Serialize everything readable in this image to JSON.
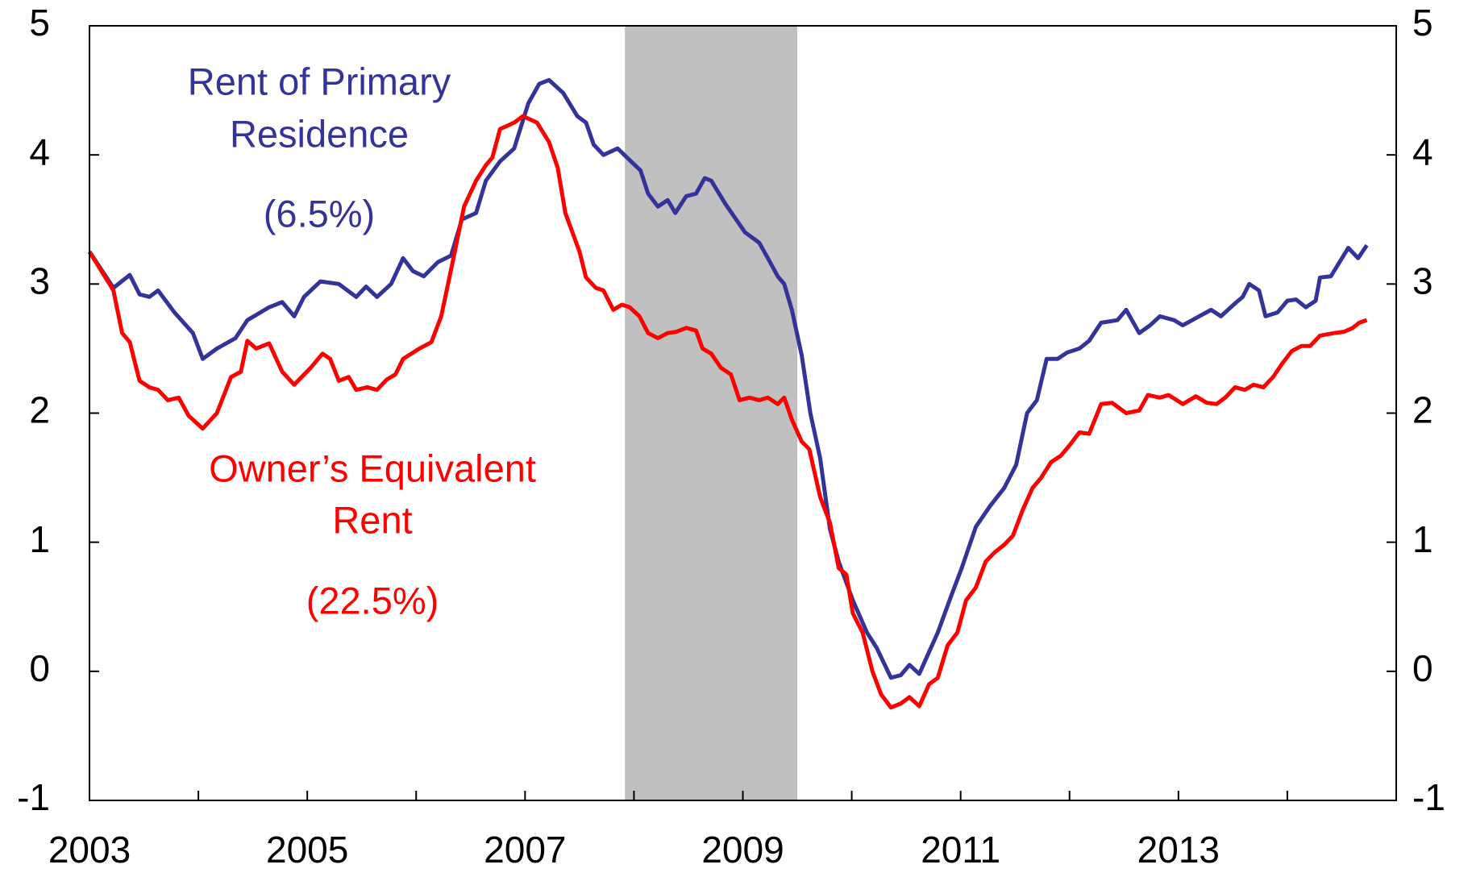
{
  "chart_data": {
    "type": "line",
    "xlim": [
      2003,
      2015
    ],
    "xticks": [
      2003,
      2005,
      2007,
      2009,
      2011,
      2013
    ],
    "xminorticks": [
      2004,
      2006,
      2008,
      2010,
      2012,
      2014
    ],
    "ylim": [
      -1,
      5
    ],
    "yticks": [
      -1,
      0,
      1,
      2,
      3,
      4,
      5
    ],
    "y2lim": [
      -1,
      5
    ],
    "y2ticks": [
      -1,
      0,
      1,
      2,
      3,
      4,
      5
    ],
    "shaded_regions": [
      {
        "x": [
          2007.917,
          2009.5
        ],
        "color": "#c0c0c0"
      }
    ],
    "annotations": [
      {
        "text": "Rent of Primary",
        "color": "#333399"
      },
      {
        "text": "Residence",
        "color": "#333399"
      },
      {
        "text": "(6.5%)",
        "color": "#333399"
      },
      {
        "text": "Owner’s Equivalent",
        "color": "#ff0000"
      },
      {
        "text": "Rent",
        "color": "#ff0000"
      },
      {
        "text": "(22.5%)",
        "color": "#ff0000"
      }
    ],
    "series": [
      {
        "name": "Rent of Primary Residence",
        "color": "#333399",
        "x": [
          2003.0,
          2003.22,
          2003.37,
          2003.46,
          2003.55,
          2003.63,
          2003.78,
          2003.95,
          2004.04,
          2004.17,
          2004.34,
          2004.45,
          2004.65,
          2004.77,
          2004.88,
          2004.97,
          2005.12,
          2005.29,
          2005.45,
          2005.54,
          2005.64,
          2005.77,
          2005.88,
          2005.97,
          2006.07,
          2006.2,
          2006.32,
          2006.42,
          2006.55,
          2006.64,
          2006.77,
          2006.9,
          2007.03,
          2007.13,
          2007.22,
          2007.35,
          2007.48,
          2007.56,
          2007.63,
          2007.72,
          2007.85,
          2007.96,
          2008.06,
          2008.13,
          2008.22,
          2008.31,
          2008.38,
          2008.48,
          2008.57,
          2008.65,
          2008.71,
          2008.84,
          2009.02,
          2009.15,
          2009.23,
          2009.32,
          2009.38,
          2009.45,
          2009.54,
          2009.62,
          2009.71,
          2009.8,
          2009.88,
          2010.01,
          2010.14,
          2010.23,
          2010.36,
          2010.45,
          2010.53,
          2010.62,
          2010.71,
          2010.79,
          2010.92,
          2011.01,
          2011.14,
          2011.27,
          2011.4,
          2011.51,
          2011.61,
          2011.7,
          2011.79,
          2011.89,
          2011.98,
          2012.09,
          2012.18,
          2012.29,
          2012.44,
          2012.52,
          2012.64,
          2012.74,
          2012.83,
          2012.96,
          2013.04,
          2013.17,
          2013.3,
          2013.39,
          2013.52,
          2013.59,
          2013.65,
          2013.74,
          2013.8,
          2013.91,
          2014.0,
          2014.08,
          2014.17,
          2014.26,
          2014.3,
          2014.4,
          2014.56,
          2014.65,
          2014.73
        ],
        "values": [
          3.25,
          2.97,
          3.07,
          2.92,
          2.9,
          2.95,
          2.78,
          2.62,
          2.42,
          2.5,
          2.58,
          2.72,
          2.82,
          2.86,
          2.75,
          2.9,
          3.02,
          3.0,
          2.9,
          2.98,
          2.9,
          3.0,
          3.2,
          3.1,
          3.06,
          3.17,
          3.22,
          3.5,
          3.55,
          3.8,
          3.95,
          4.05,
          4.4,
          4.55,
          4.58,
          4.48,
          4.3,
          4.25,
          4.08,
          4.0,
          4.05,
          3.96,
          3.88,
          3.7,
          3.6,
          3.65,
          3.55,
          3.68,
          3.7,
          3.82,
          3.8,
          3.62,
          3.4,
          3.32,
          3.2,
          3.06,
          3.0,
          2.8,
          2.45,
          2.0,
          1.65,
          1.1,
          0.85,
          0.55,
          0.3,
          0.18,
          -0.05,
          -0.03,
          0.05,
          -0.02,
          0.15,
          0.3,
          0.6,
          0.8,
          1.12,
          1.28,
          1.42,
          1.6,
          2.0,
          2.1,
          2.42,
          2.42,
          2.47,
          2.5,
          2.56,
          2.7,
          2.72,
          2.8,
          2.62,
          2.68,
          2.75,
          2.72,
          2.68,
          2.74,
          2.8,
          2.75,
          2.85,
          2.9,
          3.0,
          2.95,
          2.75,
          2.78,
          2.87,
          2.88,
          2.82,
          2.87,
          3.05,
          3.06,
          3.28,
          3.2,
          3.3
        ]
      },
      {
        "name": "Owner’s Equivalent Rent",
        "color": "#ff0000",
        "x": [
          2003.0,
          2003.22,
          2003.3,
          2003.37,
          2003.46,
          2003.55,
          2003.63,
          2003.72,
          2003.82,
          2003.91,
          2004.04,
          2004.17,
          2004.3,
          2004.39,
          2004.45,
          2004.53,
          2004.65,
          2004.77,
          2004.88,
          2005.03,
          2005.14,
          2005.21,
          2005.29,
          2005.38,
          2005.45,
          2005.55,
          2005.64,
          2005.73,
          2005.81,
          2005.88,
          2006.03,
          2006.14,
          2006.23,
          2006.33,
          2006.44,
          2006.55,
          2006.64,
          2006.7,
          2006.77,
          2006.9,
          2006.98,
          2007.11,
          2007.22,
          2007.3,
          2007.37,
          2007.5,
          2007.56,
          2007.65,
          2007.72,
          2007.81,
          2007.89,
          2007.96,
          2008.05,
          2008.13,
          2008.22,
          2008.31,
          2008.39,
          2008.48,
          2008.57,
          2008.63,
          2008.71,
          2008.8,
          2008.89,
          2008.97,
          2009.06,
          2009.15,
          2009.23,
          2009.32,
          2009.38,
          2009.45,
          2009.54,
          2009.61,
          2009.71,
          2009.8,
          2009.88,
          2009.95,
          2010.01,
          2010.1,
          2010.19,
          2010.27,
          2010.36,
          2010.45,
          2010.53,
          2010.62,
          2010.71,
          2010.79,
          2010.88,
          2010.97,
          2011.05,
          2011.14,
          2011.23,
          2011.31,
          2011.4,
          2011.48,
          2011.57,
          2011.66,
          2011.74,
          2011.83,
          2011.92,
          2012.0,
          2012.09,
          2012.18,
          2012.29,
          2012.39,
          2012.52,
          2012.64,
          2012.72,
          2012.83,
          2012.91,
          2013.04,
          2013.16,
          2013.26,
          2013.35,
          2013.43,
          2013.52,
          2013.61,
          2013.69,
          2013.78,
          2013.87,
          2013.95,
          2014.04,
          2014.13,
          2014.21,
          2014.3,
          2014.43,
          2014.52,
          2014.6,
          2014.66,
          2014.73
        ],
        "values": [
          3.25,
          2.95,
          2.62,
          2.55,
          2.25,
          2.2,
          2.18,
          2.1,
          2.12,
          1.98,
          1.88,
          2.0,
          2.28,
          2.32,
          2.56,
          2.5,
          2.54,
          2.32,
          2.22,
          2.35,
          2.46,
          2.42,
          2.25,
          2.28,
          2.18,
          2.2,
          2.18,
          2.26,
          2.3,
          2.42,
          2.5,
          2.55,
          2.75,
          3.15,
          3.6,
          3.8,
          3.92,
          3.98,
          4.2,
          4.25,
          4.3,
          4.25,
          4.1,
          3.9,
          3.55,
          3.25,
          3.05,
          2.97,
          2.95,
          2.8,
          2.84,
          2.82,
          2.75,
          2.62,
          2.58,
          2.62,
          2.63,
          2.66,
          2.64,
          2.5,
          2.46,
          2.35,
          2.3,
          2.1,
          2.12,
          2.1,
          2.12,
          2.07,
          2.12,
          1.95,
          1.78,
          1.72,
          1.35,
          1.15,
          0.8,
          0.75,
          0.45,
          0.3,
          0.0,
          -0.18,
          -0.28,
          -0.25,
          -0.2,
          -0.27,
          -0.1,
          -0.05,
          0.2,
          0.3,
          0.55,
          0.65,
          0.85,
          0.92,
          0.98,
          1.05,
          1.25,
          1.42,
          1.5,
          1.62,
          1.67,
          1.75,
          1.85,
          1.84,
          2.07,
          2.08,
          2.0,
          2.02,
          2.14,
          2.12,
          2.14,
          2.07,
          2.13,
          2.08,
          2.07,
          2.12,
          2.2,
          2.18,
          2.22,
          2.2,
          2.28,
          2.38,
          2.48,
          2.52,
          2.52,
          2.6,
          2.62,
          2.63,
          2.66,
          2.7,
          2.72
        ]
      }
    ]
  }
}
